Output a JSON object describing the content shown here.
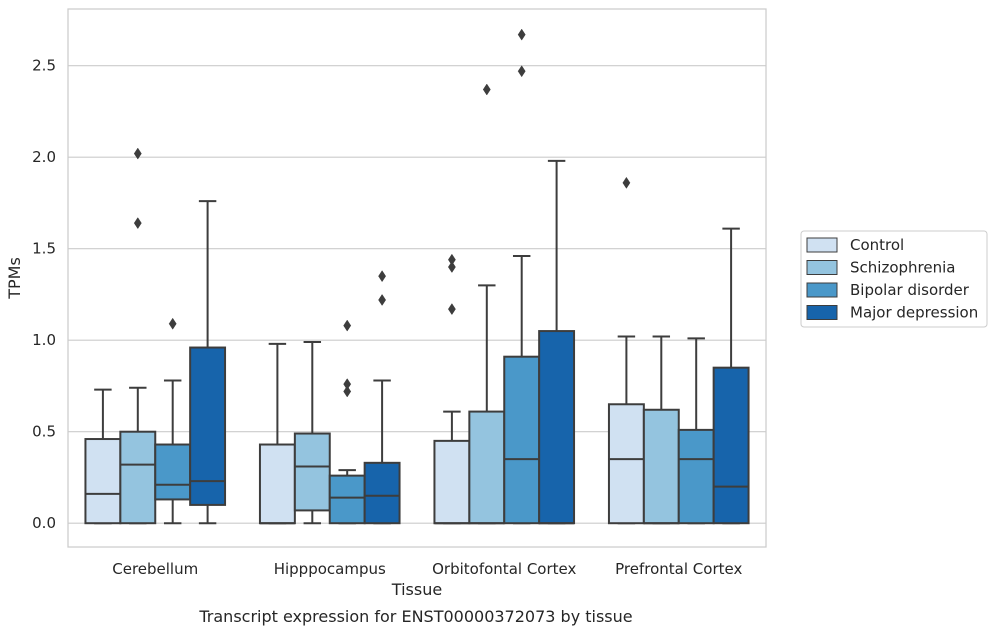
{
  "chart_data": {
    "type": "box",
    "title": "",
    "caption": "Transcript expression for ENST00000372073 by tissue",
    "xlabel": "Tissue",
    "ylabel": "TPMs",
    "ylim": [
      -0.13,
      2.81
    ],
    "yticks": [
      0.0,
      0.5,
      1.0,
      1.5,
      2.0,
      2.5
    ],
    "ytick_labels": [
      "0.0",
      "0.5",
      "1.0",
      "1.5",
      "2.0",
      "2.5"
    ],
    "grid": "horizontal",
    "legend_position": "right",
    "categories": [
      "Cerebellum",
      "Hipppocampus",
      "Orbitofontal Cortex",
      "Prefrontal Cortex"
    ],
    "series": [
      {
        "name": "Control",
        "color": "#d0e1f2",
        "boxes": [
          {
            "whisker_low": 0.0,
            "q1": 0.0,
            "median": 0.16,
            "q3": 0.46,
            "whisker_high": 0.73,
            "outliers": []
          },
          {
            "whisker_low": 0.0,
            "q1": 0.0,
            "median": 0.0,
            "q3": 0.43,
            "whisker_high": 0.98,
            "outliers": []
          },
          {
            "whisker_low": 0.0,
            "q1": 0.0,
            "median": 0.0,
            "q3": 0.45,
            "whisker_high": 0.61,
            "outliers": [
              1.17,
              1.4,
              1.44
            ]
          },
          {
            "whisker_low": 0.0,
            "q1": 0.0,
            "median": 0.35,
            "q3": 0.65,
            "whisker_high": 1.02,
            "outliers": [
              1.86
            ]
          }
        ]
      },
      {
        "name": "Schizophrenia",
        "color": "#94c4df",
        "boxes": [
          {
            "whisker_low": 0.0,
            "q1": 0.0,
            "median": 0.32,
            "q3": 0.5,
            "whisker_high": 0.74,
            "outliers": [
              1.64,
              2.02
            ]
          },
          {
            "whisker_low": 0.0,
            "q1": 0.07,
            "median": 0.31,
            "q3": 0.49,
            "whisker_high": 0.99,
            "outliers": []
          },
          {
            "whisker_low": 0.0,
            "q1": 0.0,
            "median": 0.0,
            "q3": 0.61,
            "whisker_high": 1.3,
            "outliers": [
              2.37
            ]
          },
          {
            "whisker_low": 0.0,
            "q1": 0.0,
            "median": 0.0,
            "q3": 0.62,
            "whisker_high": 1.02,
            "outliers": []
          }
        ]
      },
      {
        "name": "Bipolar disorder",
        "color": "#4a98c9",
        "boxes": [
          {
            "whisker_low": 0.0,
            "q1": 0.13,
            "median": 0.21,
            "q3": 0.43,
            "whisker_high": 0.78,
            "outliers": [
              1.09
            ]
          },
          {
            "whisker_low": 0.0,
            "q1": 0.0,
            "median": 0.14,
            "q3": 0.26,
            "whisker_high": 0.29,
            "outliers": [
              0.72,
              0.76,
              1.08
            ]
          },
          {
            "whisker_low": 0.0,
            "q1": 0.0,
            "median": 0.35,
            "q3": 0.91,
            "whisker_high": 1.46,
            "outliers": [
              2.47,
              2.67
            ]
          },
          {
            "whisker_low": 0.0,
            "q1": 0.0,
            "median": 0.35,
            "q3": 0.51,
            "whisker_high": 1.01,
            "outliers": []
          }
        ]
      },
      {
        "name": "Major depression",
        "color": "#1764ab",
        "boxes": [
          {
            "whisker_low": 0.0,
            "q1": 0.1,
            "median": 0.23,
            "q3": 0.96,
            "whisker_high": 1.76,
            "outliers": []
          },
          {
            "whisker_low": 0.0,
            "q1": 0.0,
            "median": 0.15,
            "q3": 0.33,
            "whisker_high": 0.78,
            "outliers": [
              1.22,
              1.35
            ]
          },
          {
            "whisker_low": 0.0,
            "q1": 0.0,
            "median": 0.0,
            "q3": 1.05,
            "whisker_high": 1.98,
            "outliers": []
          },
          {
            "whisker_low": 0.0,
            "q1": 0.0,
            "median": 0.2,
            "q3": 0.85,
            "whisker_high": 1.61,
            "outliers": []
          }
        ]
      }
    ]
  }
}
